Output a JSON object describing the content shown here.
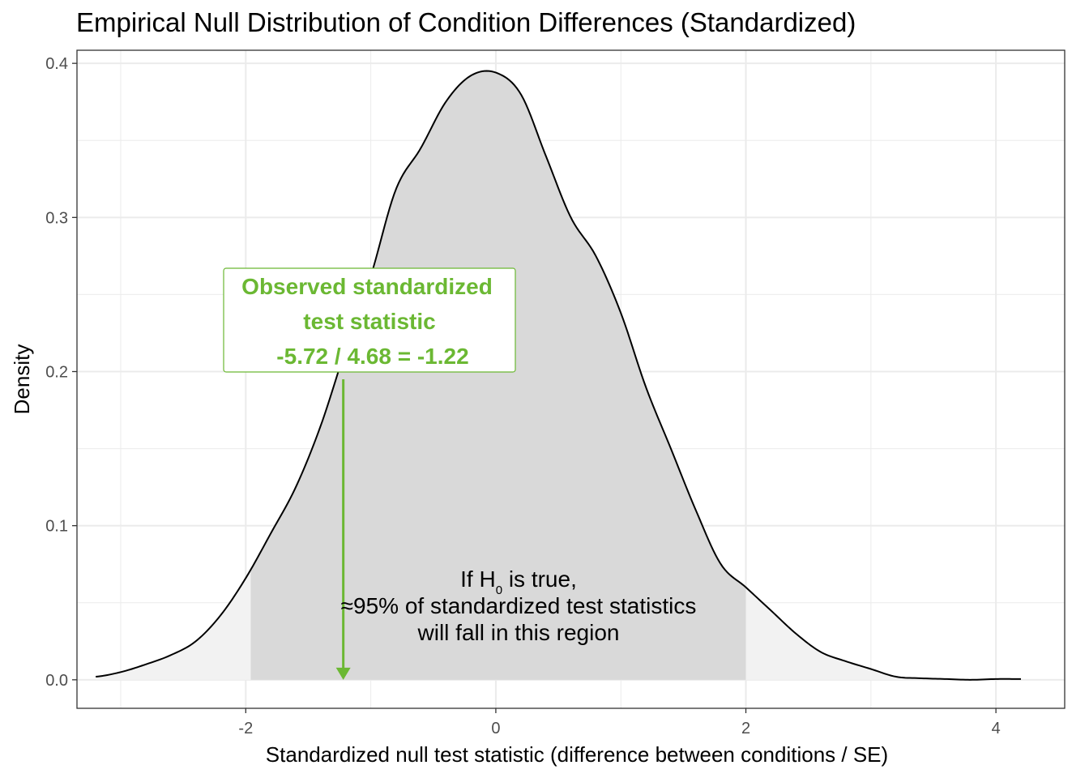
{
  "chart_data": {
    "type": "area",
    "title": "Empirical Null Distribution of Condition Differences (Standardized)",
    "xlabel": "Standardized null test statistic (difference between conditions / SE)",
    "ylabel": "Density",
    "xlim": [
      -3.35,
      4.55
    ],
    "ylim": [
      -0.0185,
      0.4085
    ],
    "x_ticks": [
      -2,
      0,
      2,
      4
    ],
    "y_ticks": [
      0.0,
      0.1,
      0.2,
      0.3,
      0.4
    ],
    "x_tick_labels": [
      "-2",
      "0",
      "2",
      "4"
    ],
    "y_tick_labels": [
      "0.0",
      "0.1",
      "0.2",
      "0.3",
      "0.4"
    ],
    "grid": true,
    "series": [
      {
        "x": [
          -3.2,
          -3.0,
          -2.8,
          -2.6,
          -2.4,
          -2.2,
          -2.0,
          -1.8,
          -1.6,
          -1.4,
          -1.2,
          -1.0,
          -0.8,
          -0.6,
          -0.4,
          -0.2,
          0.0,
          0.2,
          0.4,
          0.6,
          0.8,
          1.0,
          1.2,
          1.4,
          1.6,
          1.8,
          2.0,
          2.2,
          2.4,
          2.6,
          2.8,
          3.0,
          3.2,
          3.4,
          3.6,
          3.8,
          4.0,
          4.2
        ],
        "y": [
          0.002,
          0.005,
          0.01,
          0.016,
          0.025,
          0.042,
          0.066,
          0.095,
          0.125,
          0.165,
          0.215,
          0.262,
          0.318,
          0.345,
          0.375,
          0.392,
          0.394,
          0.38,
          0.34,
          0.3,
          0.275,
          0.238,
          0.19,
          0.15,
          0.11,
          0.075,
          0.06,
          0.045,
          0.03,
          0.018,
          0.012,
          0.007,
          0.002,
          0.001,
          0.0005,
          0.0,
          0.0005,
          0.0005
        ]
      }
    ],
    "shaded_region": [
      -1.96,
      2.0
    ],
    "colors": {
      "central_fill": "#d9d9d9",
      "tail_fill": "#f2f2f2",
      "curve": "#000000",
      "observed": "#6bb833",
      "grid": "#ebebeb",
      "panel_border": "#333333"
    },
    "observed": {
      "value": -1.22,
      "label_line1": "Observed standardized",
      "label_line2": "test statistic",
      "label_line3": "-5.72 / 4.68 = -1.22"
    },
    "region_annotation": {
      "line1_prefix": "If H",
      "line1_sub": "0",
      "line1_suffix": " is true,",
      "line2": "≈95% of standardized test statistics",
      "line3": "will fall in this region"
    }
  }
}
